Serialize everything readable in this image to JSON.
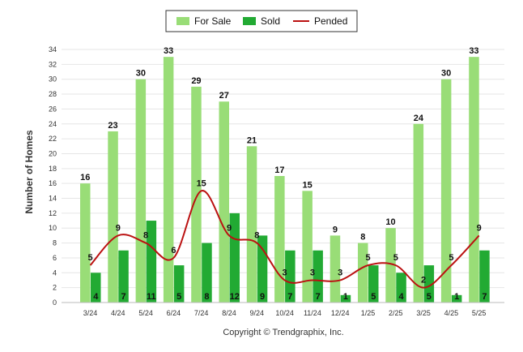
{
  "chart_data": {
    "type": "bar",
    "categories": [
      "3/24",
      "4/24",
      "5/24",
      "6/24",
      "7/24",
      "8/24",
      "9/24",
      "10/24",
      "11/24",
      "12/24",
      "1/25",
      "2/25",
      "3/25",
      "4/25",
      "5/25"
    ],
    "series": [
      {
        "name": "For Sale",
        "type": "bar",
        "color": "#99dd77",
        "values": [
          16,
          23,
          30,
          33,
          29,
          27,
          21,
          17,
          15,
          9,
          8,
          10,
          24,
          30,
          33
        ]
      },
      {
        "name": "Sold",
        "type": "bar",
        "color": "#22aa33",
        "values": [
          4,
          7,
          11,
          5,
          8,
          12,
          9,
          7,
          7,
          1,
          5,
          4,
          5,
          1,
          7
        ]
      },
      {
        "name": "Pended",
        "type": "line",
        "color": "#bb1111",
        "values": [
          5,
          9,
          8,
          6,
          15,
          9,
          8,
          3,
          3,
          3,
          5,
          5,
          2,
          5,
          9
        ]
      }
    ],
    "ylabel": "Number of Homes",
    "ylim": [
      0,
      34
    ],
    "yticks": [
      0,
      2,
      4,
      6,
      8,
      10,
      12,
      14,
      16,
      18,
      20,
      22,
      24,
      26,
      28,
      30,
      32,
      34
    ],
    "grid": true,
    "legend_position": "top-center",
    "caption": "Copyright © Trendgraphix, Inc."
  }
}
